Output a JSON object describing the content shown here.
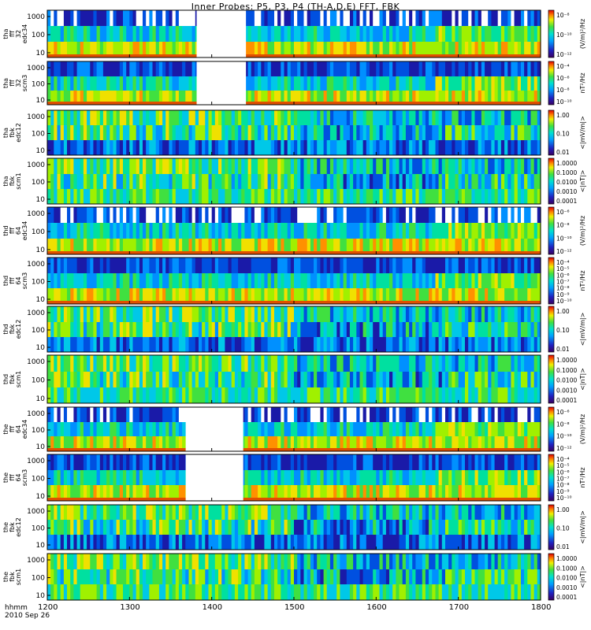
{
  "title": "Inner Probes: P5, P3, P4 (TH-A,D,E) FFT, FBK",
  "footer": {
    "line1": "hhmm",
    "line2": "2010 Sep 26"
  },
  "chart_data": {
    "type": "heatmap",
    "title": "Inner Probes: P5, P3, P4 (TH-A,D,E) FFT, FBK",
    "x_ticks": [
      "1200",
      "1300",
      "1400",
      "1500",
      "1600",
      "1700",
      "1800"
    ],
    "x_range_hhmm": [
      "1200",
      "1800"
    ],
    "colormap": "rainbow (violet-blue-cyan-green-yellow-red)",
    "panels": [
      {
        "probe": "tha",
        "ylabel": [
          "tha",
          "fff",
          "32",
          "edc34"
        ],
        "yticks": [
          "1000",
          "100",
          "10"
        ],
        "cbar_ticks": [
          "10⁻⁸",
          "10⁻¹⁰",
          "10⁻¹²"
        ],
        "cbar_label": "(V/m)²/Hz",
        "gap": [
          "1349",
          "1425"
        ]
      },
      {
        "probe": "tha",
        "ylabel": [
          "tha",
          "fff",
          "32",
          "scm3"
        ],
        "yticks": [
          "1000",
          "100",
          "10"
        ],
        "cbar_ticks": [
          "10⁻⁴",
          "10⁻⁶",
          "10⁻⁸",
          "10⁻¹⁰"
        ],
        "cbar_label": "nT²/Hz",
        "gap": [
          "1349",
          "1425"
        ]
      },
      {
        "probe": "tha",
        "ylabel": [
          "tha",
          "fbk",
          "edc12"
        ],
        "yticks": [
          "1000",
          "100",
          "10"
        ],
        "cbar_ticks": [
          "1.00",
          "0.10",
          "0.01"
        ],
        "cbar_label": "<|mV/m|>",
        "gap": null
      },
      {
        "probe": "tha",
        "ylabel": [
          "tha",
          "fbk",
          "scm1"
        ],
        "yticks": [
          "1000",
          "100",
          "10"
        ],
        "cbar_ticks": [
          "1.0000",
          "0.1000",
          "0.0100",
          "0.0010",
          "0.0001"
        ],
        "cbar_label": "<|nT|>",
        "gap": null
      },
      {
        "probe": "thd",
        "ylabel": [
          "thd",
          "fff",
          "64",
          "edc34"
        ],
        "yticks": [
          "1000",
          "100",
          "10"
        ],
        "cbar_ticks": [
          "10⁻⁶",
          "10⁻⁸",
          "10⁻¹⁰",
          "10⁻¹²"
        ],
        "cbar_label": "(V/m)²/Hz",
        "gap": null
      },
      {
        "probe": "thd",
        "ylabel": [
          "thd",
          "fff",
          "64",
          "scm3"
        ],
        "yticks": [
          "1000",
          "100",
          "10"
        ],
        "cbar_ticks": [
          "10⁻⁴",
          "10⁻⁵",
          "10⁻⁶",
          "10⁻⁷",
          "10⁻⁸",
          "10⁻⁹",
          "10⁻¹⁰"
        ],
        "cbar_label": "nT²/Hz",
        "gap": null
      },
      {
        "probe": "thd",
        "ylabel": [
          "thd",
          "fbk",
          "edc12"
        ],
        "yticks": [
          "1000",
          "100",
          "10"
        ],
        "cbar_ticks": [
          "1.00",
          "0.10",
          "0.01"
        ],
        "cbar_label": "<|mV/m|>",
        "gap": null
      },
      {
        "probe": "thd",
        "ylabel": [
          "thd",
          "fbk",
          "scm1"
        ],
        "yticks": [
          "1000",
          "100",
          "10"
        ],
        "cbar_ticks": [
          "1.0000",
          "0.1000",
          "0.0100",
          "0.0010",
          "0.0001"
        ],
        "cbar_label": "<|nT|>",
        "gap": null
      },
      {
        "probe": "the",
        "ylabel": [
          "the",
          "fff",
          "64",
          "edc34"
        ],
        "yticks": [
          "1000",
          "100",
          "10"
        ],
        "cbar_ticks": [
          "10⁻⁶",
          "10⁻⁸",
          "10⁻¹⁰",
          "10⁻¹²"
        ],
        "cbar_label": "(V/m)²/Hz",
        "gap": [
          "1341",
          "1423"
        ]
      },
      {
        "probe": "the",
        "ylabel": [
          "the",
          "fff",
          "64",
          "scm3"
        ],
        "yticks": [
          "1000",
          "100",
          "10"
        ],
        "cbar_ticks": [
          "10⁻⁴",
          "10⁻⁵",
          "10⁻⁶",
          "10⁻⁷",
          "10⁻⁸",
          "10⁻⁹",
          "10⁻¹⁰"
        ],
        "cbar_label": "nT²/Hz",
        "gap": [
          "1341",
          "1423"
        ]
      },
      {
        "probe": "the",
        "ylabel": [
          "the",
          "fbk",
          "edc12"
        ],
        "yticks": [
          "1000",
          "100",
          "10"
        ],
        "cbar_ticks": [
          "1.00",
          "0.10",
          "0.01"
        ],
        "cbar_label": "<|mV/m|>",
        "gap": null
      },
      {
        "probe": "the",
        "ylabel": [
          "the",
          "fbk",
          "scm1"
        ],
        "yticks": [
          "1000",
          "100",
          "10"
        ],
        "cbar_ticks": [
          "1.0000",
          "0.1000",
          "0.0100",
          "0.0010",
          "0.0001"
        ],
        "cbar_label": "<|nT|>",
        "gap": null
      }
    ]
  }
}
